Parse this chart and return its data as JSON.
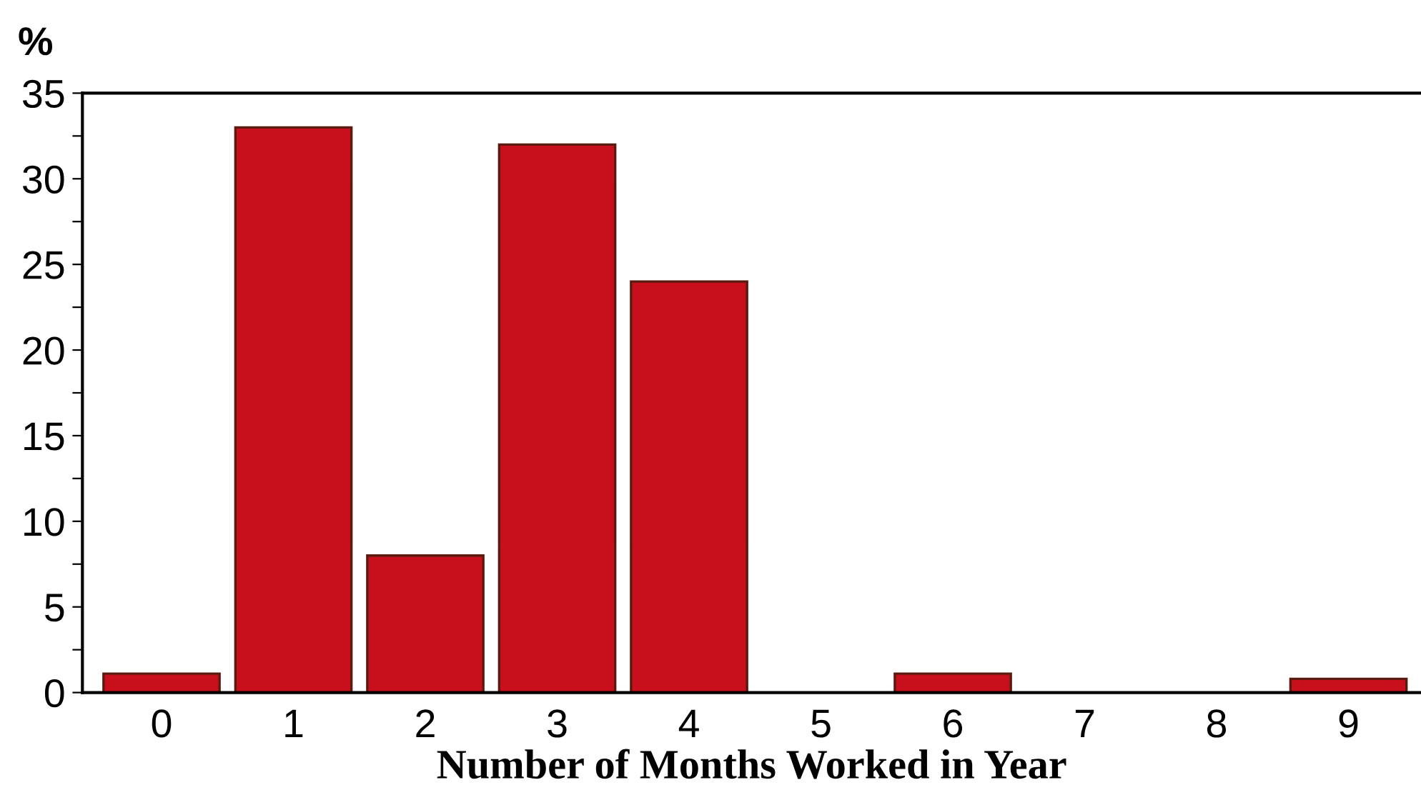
{
  "chart_data": {
    "type": "bar",
    "xlabel": "Number of Months Worked in Year",
    "ylabel": "%",
    "categories": [
      "0",
      "1",
      "2",
      "3",
      "4",
      "5",
      "6",
      "7",
      "8",
      "9"
    ],
    "values": [
      1.1,
      33,
      8,
      32,
      24,
      0,
      1.1,
      0,
      0,
      0.8
    ],
    "color": "#c8101c",
    "ylim": [
      0,
      35
    ],
    "yticks": [
      0,
      {
        "value": 2.5,
        "label": null
      },
      5,
      {
        "value": 7.5,
        "label": null
      },
      10,
      {
        "value": 12.5,
        "label": null
      },
      15,
      {
        "value": 17.5,
        "label": null
      },
      20,
      {
        "value": 22.5,
        "label": null
      },
      25,
      {
        "value": 27.5,
        "label": null
      },
      30,
      {
        "value": 32.5,
        "label": null
      },
      35
    ],
    "grid": false,
    "legend": false
  }
}
